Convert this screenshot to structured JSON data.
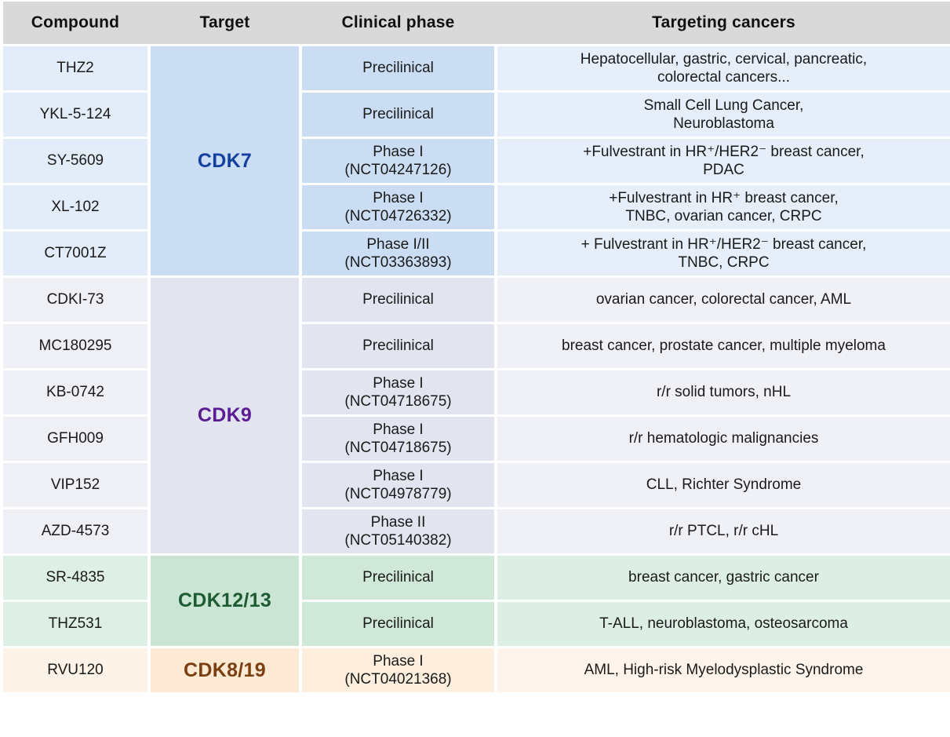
{
  "table": {
    "columns": [
      "Compound",
      "Target",
      "Clinical phase",
      "Targeting cancers"
    ],
    "header_bg": "#d9d9d9",
    "groups": [
      {
        "target": "CDK7",
        "colors": {
          "label": "#14409e",
          "compound": "#e3edf9",
          "target": "#cbddf2",
          "phase": "#cbddf2",
          "cancers": "#e5eef9"
        },
        "rows": [
          {
            "compound": "THZ2",
            "phase": [
              "Precilinical"
            ],
            "cancers": [
              "Hepatocellular, gastric, cervical, pancreatic,",
              "colorectal cancers..."
            ]
          },
          {
            "compound": "YKL-5-124",
            "phase": [
              "Precilinical"
            ],
            "cancers": [
              "Small Cell Lung Cancer,",
              "Neuroblastoma"
            ]
          },
          {
            "compound": "SY-5609",
            "phase": [
              "Phase I",
              "(NCT04247126)"
            ],
            "cancers": [
              "+Fulvestrant in HR⁺/HER2⁻ breast cancer,",
              "PDAC"
            ]
          },
          {
            "compound": "XL-102",
            "phase": [
              "Phase I",
              "(NCT04726332)"
            ],
            "cancers": [
              "+Fulvestrant in HR⁺ breast cancer,",
              "TNBC, ovarian cancer, CRPC"
            ]
          },
          {
            "compound": "CT7001Z",
            "phase": [
              "Phase I/II",
              "(NCT03363893)"
            ],
            "cancers": [
              "+ Fulvestrant in HR⁺/HER2⁻ breast cancer,",
              "TNBC, CRPC"
            ]
          }
        ]
      },
      {
        "target": "CDK9",
        "colors": {
          "label": "#5b1b91",
          "compound": "#eef0f6",
          "target": "#e2e4f0",
          "phase": "#e2e4f0",
          "cancers": "#eff1f7"
        },
        "rows": [
          {
            "compound": "CDKI-73",
            "phase": [
              "Precilinical"
            ],
            "cancers": [
              "ovarian cancer, colorectal cancer, AML"
            ]
          },
          {
            "compound": "MC180295",
            "phase": [
              "Precilinical"
            ],
            "cancers": [
              "breast cancer, prostate cancer, multiple myeloma"
            ]
          },
          {
            "compound": "KB-0742",
            "phase": [
              "Phase I",
              "(NCT04718675)"
            ],
            "cancers": [
              "r/r solid tumors, nHL"
            ]
          },
          {
            "compound": "GFH009",
            "phase": [
              "Phase I",
              "(NCT04718675)"
            ],
            "cancers": [
              "r/r hematologic malignancies"
            ]
          },
          {
            "compound": "VIP152",
            "phase": [
              "Phase I",
              "(NCT04978779)"
            ],
            "cancers": [
              "CLL, Richter Syndrome"
            ]
          },
          {
            "compound": "AZD-4573",
            "phase": [
              "Phase II",
              "(NCT05140382)"
            ],
            "cancers": [
              "r/r PTCL, r/r cHL"
            ]
          }
        ]
      },
      {
        "target": "CDK12/13",
        "colors": {
          "label": "#1d5c33",
          "compound": "#def0e6",
          "target": "#cbe5d5",
          "phase": "#cfe8d8",
          "cancers": "#ddefe5"
        },
        "rows": [
          {
            "compound": "SR-4835",
            "phase": [
              "Precilinical"
            ],
            "cancers": [
              "breast cancer, gastric cancer"
            ]
          },
          {
            "compound": "THZ531",
            "phase": [
              "Precilinical"
            ],
            "cancers": [
              "T-ALL, neuroblastoma, osteosarcoma"
            ]
          }
        ]
      },
      {
        "target": "CDK8/19",
        "colors": {
          "label": "#7b4012",
          "compound": "#fdf3e8",
          "target": "#fcead5",
          "phase": "#fdeedd",
          "cancers": "#fef4eb"
        },
        "rows": [
          {
            "compound": "RVU120",
            "phase": [
              "Phase I",
              "(NCT04021368)"
            ],
            "cancers": [
              "AML, High-risk Myelodysplastic Syndrome"
            ]
          }
        ]
      }
    ]
  }
}
